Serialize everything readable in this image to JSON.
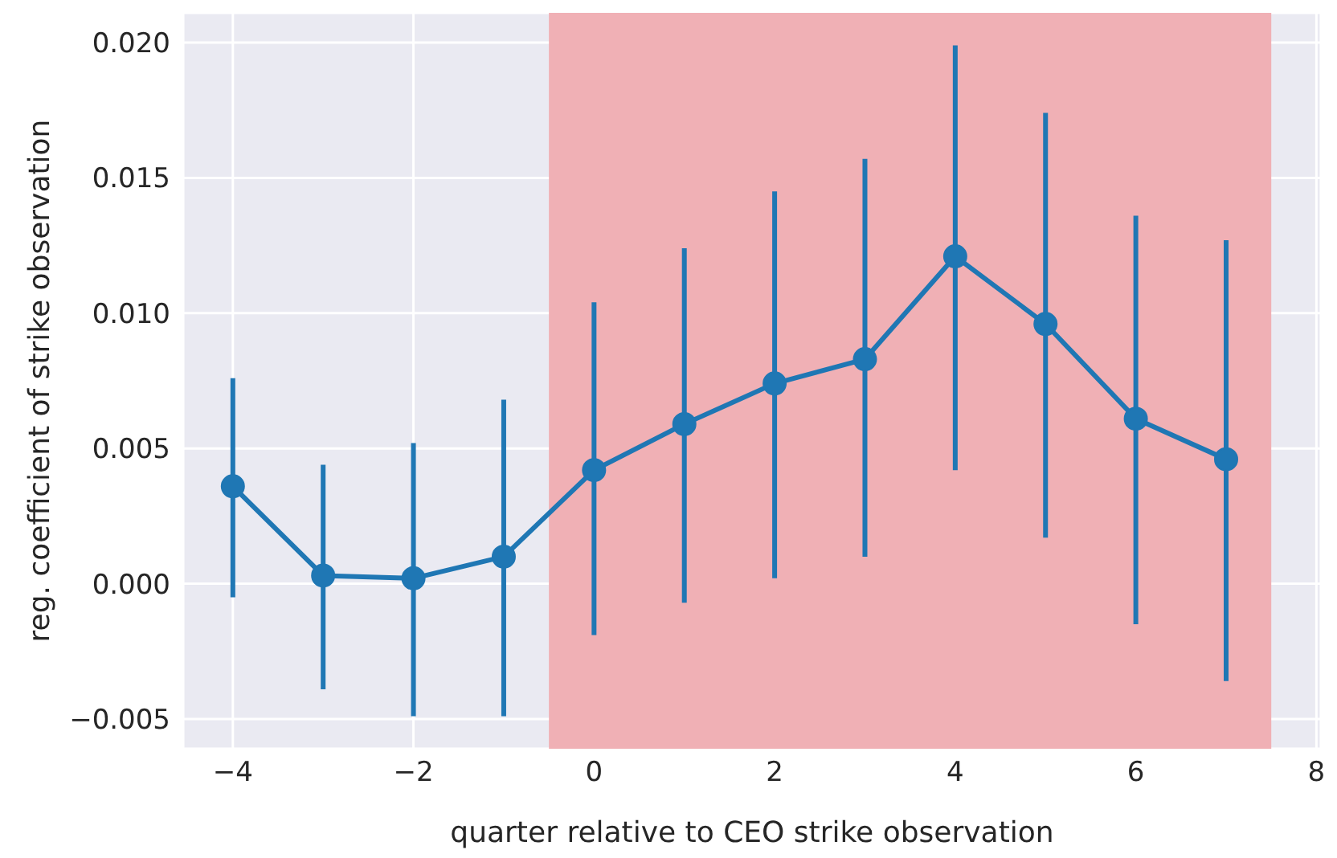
{
  "chart_data": {
    "type": "line",
    "xlabel": "quarter relative to CEO strike observation",
    "ylabel": "reg. coefficient of strike observation",
    "x": [
      -4,
      -3,
      -2,
      -1,
      0,
      1,
      2,
      3,
      4,
      5,
      6,
      7
    ],
    "series": [
      {
        "color": "#1f77b4",
        "values": [
          0.0036,
          0.0003,
          0.0002,
          0.001,
          0.0042,
          0.0059,
          0.0074,
          0.0083,
          0.0121,
          0.0096,
          0.0061,
          0.0046
        ],
        "errors": [
          [
            -0.0005,
            0.0076
          ],
          [
            -0.0039,
            0.0044
          ],
          [
            -0.0049,
            0.0052
          ],
          [
            -0.0049,
            0.0068
          ],
          [
            -0.0019,
            0.0104
          ],
          [
            -0.0007,
            0.0124
          ],
          [
            0.0002,
            0.0145
          ],
          [
            0.001,
            0.0157
          ],
          [
            0.0042,
            0.0199
          ],
          [
            0.0017,
            0.0174
          ],
          [
            -0.0015,
            0.0136
          ],
          [
            -0.0036,
            0.0127
          ]
        ]
      }
    ],
    "xlim": [
      -4.55,
      8.05
    ],
    "ylim": [
      -0.0061,
      0.0211
    ],
    "xticks": [
      {
        "value": -4,
        "label": "−4"
      },
      {
        "value": -2,
        "label": "−2"
      },
      0,
      2,
      4,
      6,
      8
    ],
    "yticks": [
      {
        "value": -0.005,
        "label": "−0.005"
      },
      {
        "value": 0,
        "label": "0.000"
      },
      {
        "value": 0.005,
        "label": "0.005"
      },
      {
        "value": 0.01,
        "label": "0.010"
      },
      {
        "value": 0.015,
        "label": "0.015"
      },
      {
        "value": 0.02,
        "label": "0.020"
      }
    ],
    "bands": [
      {
        "axis": "x",
        "from": -0.5,
        "to": 7.5,
        "color": "#f0b0b5"
      }
    ],
    "grid": true,
    "marker": "circle",
    "line_style": "solid"
  }
}
